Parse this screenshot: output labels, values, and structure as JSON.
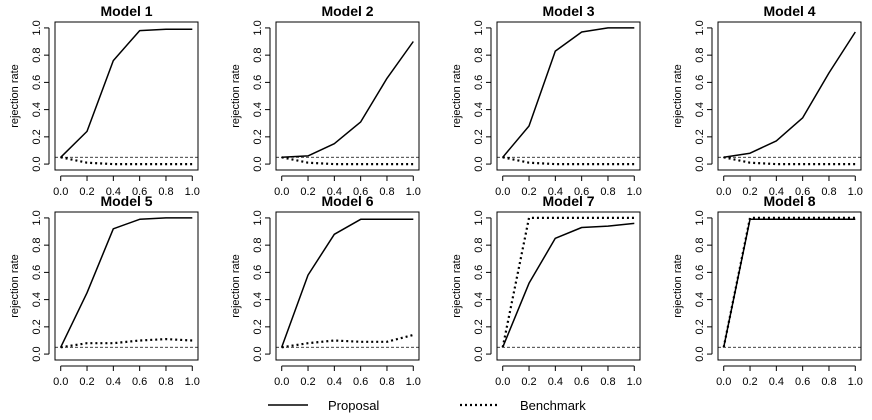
{
  "figure": {
    "legend": {
      "placement": "bottom-center",
      "entries": [
        {
          "label": "Proposal",
          "style": "solid"
        },
        {
          "label": "Benchmark",
          "style": "dotted"
        }
      ]
    },
    "reference_line": {
      "y": 0.05,
      "style": "dashed"
    },
    "colors": {
      "line": "#000000",
      "background": "#ffffff"
    }
  },
  "chart_data": [
    {
      "type": "line",
      "title": "Model 1",
      "xlabel": "",
      "ylabel": "rejection rate",
      "xlim": [
        0,
        1
      ],
      "ylim": [
        0,
        1
      ],
      "x_ticks": [
        "0.0",
        "0.2",
        "0.4",
        "0.6",
        "0.8",
        "1.0"
      ],
      "y_ticks": [
        "0.0",
        "0.2",
        "0.4",
        "0.6",
        "0.8",
        "1.0"
      ],
      "x": [
        0,
        0.2,
        0.4,
        0.6,
        0.8,
        1.0
      ],
      "series": [
        {
          "name": "Proposal",
          "values": [
            0.05,
            0.24,
            0.76,
            0.98,
            0.99,
            0.99
          ]
        },
        {
          "name": "Benchmark",
          "values": [
            0.05,
            0.01,
            0.0,
            0.0,
            0.0,
            0.0
          ]
        }
      ]
    },
    {
      "type": "line",
      "title": "Model 2",
      "xlabel": "",
      "ylabel": "rejection rate",
      "xlim": [
        0,
        1
      ],
      "ylim": [
        0,
        1
      ],
      "x_ticks": [
        "0.0",
        "0.2",
        "0.4",
        "0.6",
        "0.8",
        "1.0"
      ],
      "y_ticks": [
        "0.0",
        "0.2",
        "0.4",
        "0.6",
        "0.8",
        "1.0"
      ],
      "x": [
        0,
        0.2,
        0.4,
        0.6,
        0.8,
        1.0
      ],
      "series": [
        {
          "name": "Proposal",
          "values": [
            0.05,
            0.06,
            0.15,
            0.31,
            0.63,
            0.9
          ]
        },
        {
          "name": "Benchmark",
          "values": [
            0.05,
            0.01,
            0.0,
            0.0,
            0.0,
            0.0
          ]
        }
      ]
    },
    {
      "type": "line",
      "title": "Model 3",
      "xlabel": "",
      "ylabel": "rejection rate",
      "xlim": [
        0,
        1
      ],
      "ylim": [
        0,
        1
      ],
      "x_ticks": [
        "0.0",
        "0.2",
        "0.4",
        "0.6",
        "0.8",
        "1.0"
      ],
      "y_ticks": [
        "0.0",
        "0.2",
        "0.4",
        "0.6",
        "0.8",
        "1.0"
      ],
      "x": [
        0,
        0.2,
        0.4,
        0.6,
        0.8,
        1.0
      ],
      "series": [
        {
          "name": "Proposal",
          "values": [
            0.05,
            0.28,
            0.83,
            0.97,
            1.0,
            1.0
          ]
        },
        {
          "name": "Benchmark",
          "values": [
            0.05,
            0.01,
            0.0,
            0.0,
            0.0,
            0.0
          ]
        }
      ]
    },
    {
      "type": "line",
      "title": "Model 4",
      "xlabel": "",
      "ylabel": "rejection rate",
      "xlim": [
        0,
        1
      ],
      "ylim": [
        0,
        1
      ],
      "x_ticks": [
        "0.0",
        "0.2",
        "0.4",
        "0.6",
        "0.8",
        "1.0"
      ],
      "y_ticks": [
        "0.0",
        "0.2",
        "0.4",
        "0.6",
        "0.8",
        "1.0"
      ],
      "x": [
        0,
        0.2,
        0.4,
        0.6,
        0.8,
        1.0
      ],
      "series": [
        {
          "name": "Proposal",
          "values": [
            0.05,
            0.08,
            0.17,
            0.34,
            0.67,
            0.97
          ]
        },
        {
          "name": "Benchmark",
          "values": [
            0.05,
            0.01,
            0.0,
            0.0,
            0.0,
            0.0
          ]
        }
      ]
    },
    {
      "type": "line",
      "title": "Model 5",
      "xlabel": "",
      "ylabel": "rejection rate",
      "xlim": [
        0,
        1
      ],
      "ylim": [
        0,
        1
      ],
      "x_ticks": [
        "0.0",
        "0.2",
        "0.4",
        "0.6",
        "0.8",
        "1.0"
      ],
      "y_ticks": [
        "0.0",
        "0.2",
        "0.4",
        "0.6",
        "0.8",
        "1.0"
      ],
      "x": [
        0,
        0.2,
        0.4,
        0.6,
        0.8,
        1.0
      ],
      "series": [
        {
          "name": "Proposal",
          "values": [
            0.05,
            0.45,
            0.92,
            0.99,
            1.0,
            1.0
          ]
        },
        {
          "name": "Benchmark",
          "values": [
            0.05,
            0.08,
            0.08,
            0.1,
            0.11,
            0.1
          ]
        }
      ]
    },
    {
      "type": "line",
      "title": "Model 6",
      "xlabel": "",
      "ylabel": "rejection rate",
      "xlim": [
        0,
        1
      ],
      "ylim": [
        0,
        1
      ],
      "x_ticks": [
        "0.0",
        "0.2",
        "0.4",
        "0.6",
        "0.8",
        "1.0"
      ],
      "y_ticks": [
        "0.0",
        "0.2",
        "0.4",
        "0.6",
        "0.8",
        "1.0"
      ],
      "x": [
        0,
        0.2,
        0.4,
        0.6,
        0.8,
        1.0
      ],
      "series": [
        {
          "name": "Proposal",
          "values": [
            0.05,
            0.58,
            0.88,
            0.99,
            0.99,
            0.99
          ]
        },
        {
          "name": "Benchmark",
          "values": [
            0.05,
            0.08,
            0.1,
            0.09,
            0.09,
            0.14
          ]
        }
      ]
    },
    {
      "type": "line",
      "title": "Model 7",
      "xlabel": "",
      "ylabel": "rejection rate",
      "xlim": [
        0,
        1
      ],
      "ylim": [
        0,
        1
      ],
      "x_ticks": [
        "0.0",
        "0.2",
        "0.4",
        "0.6",
        "0.8",
        "1.0"
      ],
      "y_ticks": [
        "0.0",
        "0.2",
        "0.4",
        "0.6",
        "0.8",
        "1.0"
      ],
      "x": [
        0,
        0.2,
        0.4,
        0.6,
        0.8,
        1.0
      ],
      "series": [
        {
          "name": "Proposal",
          "values": [
            0.05,
            0.52,
            0.85,
            0.93,
            0.94,
            0.96
          ]
        },
        {
          "name": "Benchmark",
          "values": [
            0.05,
            1.0,
            1.0,
            1.0,
            1.0,
            1.0
          ]
        }
      ]
    },
    {
      "type": "line",
      "title": "Model 8",
      "xlabel": "",
      "ylabel": "rejection rate",
      "xlim": [
        0,
        1
      ],
      "ylim": [
        0,
        1
      ],
      "x_ticks": [
        "0.0",
        "0.2",
        "0.4",
        "0.6",
        "0.8",
        "1.0"
      ],
      "y_ticks": [
        "0.0",
        "0.2",
        "0.4",
        "0.6",
        "0.8",
        "1.0"
      ],
      "x": [
        0,
        0.2,
        0.4,
        0.6,
        0.8,
        1.0
      ],
      "series": [
        {
          "name": "Proposal",
          "values": [
            0.05,
            0.99,
            0.99,
            0.99,
            0.99,
            0.99
          ]
        },
        {
          "name": "Benchmark",
          "values": [
            0.05,
            1.0,
            1.0,
            1.0,
            1.0,
            1.0
          ]
        }
      ]
    }
  ]
}
